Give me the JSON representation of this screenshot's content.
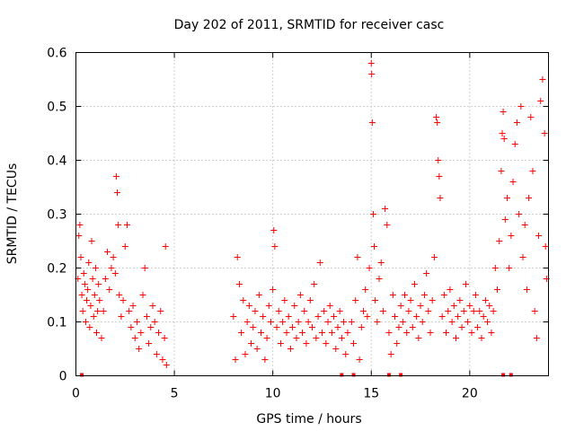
{
  "chart_data": {
    "type": "scatter",
    "title": "Day 202 of 2011, SRMTID for receiver casc",
    "xlabel": "GPS time / hours",
    "ylabel": "SRMTID / TECUs",
    "xlim": [
      0,
      24
    ],
    "ylim": [
      0,
      0.6
    ],
    "x_ticks": [
      0,
      5,
      10,
      15,
      20
    ],
    "y_ticks": [
      0,
      0.1,
      0.2,
      0.3,
      0.4,
      0.5,
      0.6
    ],
    "x_tick_labels": [
      "0",
      "5",
      "10",
      "15",
      "20"
    ],
    "y_tick_labels": [
      "0",
      "0.1",
      "0.2",
      "0.3",
      "0.4",
      "0.5",
      "0.6"
    ],
    "grid": true,
    "marker": "plus",
    "series": [
      {
        "name": "SRMTID",
        "color": "#ff0000",
        "points": [
          [
            0.1,
            0.18
          ],
          [
            0.15,
            0.26
          ],
          [
            0.2,
            0.28
          ],
          [
            0.25,
            0.22
          ],
          [
            0.3,
            0.15
          ],
          [
            0.35,
            0.12
          ],
          [
            0.4,
            0.19
          ],
          [
            0.45,
            0.17
          ],
          [
            0.5,
            0.1
          ],
          [
            0.55,
            0.14
          ],
          [
            0.6,
            0.16
          ],
          [
            0.65,
            0.21
          ],
          [
            0.7,
            0.09
          ],
          [
            0.75,
            0.13
          ],
          [
            0.8,
            0.25
          ],
          [
            0.85,
            0.18
          ],
          [
            0.9,
            0.11
          ],
          [
            0.95,
            0.15
          ],
          [
            1.0,
            0.2
          ],
          [
            1.05,
            0.08
          ],
          [
            1.1,
            0.12
          ],
          [
            1.15,
            0.17
          ],
          [
            1.2,
            0.14
          ],
          [
            1.3,
            0.07
          ],
          [
            1.4,
            0.12
          ],
          [
            1.5,
            0.18
          ],
          [
            1.6,
            0.23
          ],
          [
            1.7,
            0.16
          ],
          [
            1.8,
            0.2
          ],
          [
            1.9,
            0.22
          ],
          [
            2.0,
            0.19
          ],
          [
            2.05,
            0.37
          ],
          [
            2.1,
            0.34
          ],
          [
            2.15,
            0.28
          ],
          [
            2.2,
            0.15
          ],
          [
            2.3,
            0.11
          ],
          [
            2.4,
            0.14
          ],
          [
            2.5,
            0.24
          ],
          [
            2.6,
            0.28
          ],
          [
            2.7,
            0.12
          ],
          [
            2.8,
            0.09
          ],
          [
            2.9,
            0.13
          ],
          [
            3.0,
            0.07
          ],
          [
            3.1,
            0.1
          ],
          [
            3.2,
            0.05
          ],
          [
            3.3,
            0.08
          ],
          [
            3.4,
            0.15
          ],
          [
            3.5,
            0.2
          ],
          [
            3.6,
            0.11
          ],
          [
            3.7,
            0.06
          ],
          [
            3.8,
            0.09
          ],
          [
            3.9,
            0.13
          ],
          [
            4.0,
            0.1
          ],
          [
            4.1,
            0.04
          ],
          [
            4.2,
            0.08
          ],
          [
            4.3,
            0.12
          ],
          [
            4.4,
            0.03
          ],
          [
            4.5,
            0.07
          ],
          [
            4.55,
            0.24
          ],
          [
            4.6,
            0.02
          ],
          [
            8.0,
            0.11
          ],
          [
            8.1,
            0.03
          ],
          [
            8.2,
            0.22
          ],
          [
            8.3,
            0.17
          ],
          [
            8.4,
            0.08
          ],
          [
            8.5,
            0.14
          ],
          [
            8.6,
            0.04
          ],
          [
            8.7,
            0.1
          ],
          [
            8.8,
            0.13
          ],
          [
            8.9,
            0.06
          ],
          [
            9.0,
            0.09
          ],
          [
            9.1,
            0.12
          ],
          [
            9.2,
            0.05
          ],
          [
            9.3,
            0.15
          ],
          [
            9.4,
            0.08
          ],
          [
            9.5,
            0.11
          ],
          [
            9.6,
            0.03
          ],
          [
            9.7,
            0.07
          ],
          [
            9.8,
            0.13
          ],
          [
            9.9,
            0.1
          ],
          [
            10.0,
            0.16
          ],
          [
            10.05,
            0.27
          ],
          [
            10.1,
            0.24
          ],
          [
            10.2,
            0.09
          ],
          [
            10.3,
            0.12
          ],
          [
            10.4,
            0.06
          ],
          [
            10.5,
            0.1
          ],
          [
            10.6,
            0.14
          ],
          [
            10.7,
            0.08
          ],
          [
            10.8,
            0.11
          ],
          [
            10.9,
            0.05
          ],
          [
            11.0,
            0.09
          ],
          [
            11.1,
            0.13
          ],
          [
            11.2,
            0.07
          ],
          [
            11.3,
            0.1
          ],
          [
            11.4,
            0.15
          ],
          [
            11.5,
            0.08
          ],
          [
            11.6,
            0.12
          ],
          [
            11.7,
            0.06
          ],
          [
            11.8,
            0.1
          ],
          [
            11.9,
            0.14
          ],
          [
            12.0,
            0.09
          ],
          [
            12.1,
            0.17
          ],
          [
            12.2,
            0.07
          ],
          [
            12.3,
            0.11
          ],
          [
            12.4,
            0.21
          ],
          [
            12.5,
            0.08
          ],
          [
            12.6,
            0.12
          ],
          [
            12.7,
            0.06
          ],
          [
            12.8,
            0.1
          ],
          [
            12.9,
            0.13
          ],
          [
            13.0,
            0.08
          ],
          [
            13.1,
            0.11
          ],
          [
            13.2,
            0.05
          ],
          [
            13.3,
            0.09
          ],
          [
            13.4,
            0.12
          ],
          [
            13.5,
            0.07
          ],
          [
            13.6,
            0.1
          ],
          [
            13.7,
            0.04
          ],
          [
            13.8,
            0.08
          ],
          [
            14.0,
            0.1
          ],
          [
            14.1,
            0.06
          ],
          [
            14.2,
            0.14
          ],
          [
            14.3,
            0.22
          ],
          [
            14.4,
            0.03
          ],
          [
            14.5,
            0.09
          ],
          [
            14.6,
            0.12
          ],
          [
            14.7,
            0.16
          ],
          [
            14.8,
            0.11
          ],
          [
            14.9,
            0.2
          ],
          [
            15.0,
            0.58
          ],
          [
            15.02,
            0.56
          ],
          [
            15.05,
            0.47
          ],
          [
            15.1,
            0.3
          ],
          [
            15.15,
            0.24
          ],
          [
            15.2,
            0.14
          ],
          [
            15.3,
            0.1
          ],
          [
            15.4,
            0.18
          ],
          [
            15.5,
            0.21
          ],
          [
            15.6,
            0.12
          ],
          [
            15.7,
            0.31
          ],
          [
            15.8,
            0.28
          ],
          [
            15.9,
            0.08
          ],
          [
            16.0,
            0.04
          ],
          [
            16.1,
            0.15
          ],
          [
            16.2,
            0.11
          ],
          [
            16.3,
            0.06
          ],
          [
            16.4,
            0.09
          ],
          [
            16.5,
            0.13
          ],
          [
            16.6,
            0.1
          ],
          [
            16.7,
            0.15
          ],
          [
            16.8,
            0.08
          ],
          [
            16.9,
            0.12
          ],
          [
            17.0,
            0.14
          ],
          [
            17.1,
            0.09
          ],
          [
            17.2,
            0.17
          ],
          [
            17.3,
            0.11
          ],
          [
            17.4,
            0.07
          ],
          [
            17.5,
            0.13
          ],
          [
            17.6,
            0.1
          ],
          [
            17.7,
            0.15
          ],
          [
            17.8,
            0.19
          ],
          [
            17.9,
            0.12
          ],
          [
            18.0,
            0.08
          ],
          [
            18.1,
            0.14
          ],
          [
            18.2,
            0.22
          ],
          [
            18.3,
            0.48
          ],
          [
            18.35,
            0.47
          ],
          [
            18.4,
            0.4
          ],
          [
            18.45,
            0.37
          ],
          [
            18.5,
            0.33
          ],
          [
            18.6,
            0.11
          ],
          [
            18.7,
            0.15
          ],
          [
            18.8,
            0.08
          ],
          [
            18.9,
            0.12
          ],
          [
            19.0,
            0.16
          ],
          [
            19.1,
            0.1
          ],
          [
            19.2,
            0.13
          ],
          [
            19.3,
            0.07
          ],
          [
            19.4,
            0.11
          ],
          [
            19.5,
            0.14
          ],
          [
            19.6,
            0.09
          ],
          [
            19.7,
            0.12
          ],
          [
            19.8,
            0.17
          ],
          [
            19.9,
            0.1
          ],
          [
            20.0,
            0.13
          ],
          [
            20.1,
            0.08
          ],
          [
            20.2,
            0.12
          ],
          [
            20.3,
            0.15
          ],
          [
            20.4,
            0.09
          ],
          [
            20.5,
            0.12
          ],
          [
            20.6,
            0.07
          ],
          [
            20.7,
            0.11
          ],
          [
            20.8,
            0.14
          ],
          [
            20.9,
            0.1
          ],
          [
            21.0,
            0.13
          ],
          [
            21.1,
            0.08
          ],
          [
            21.2,
            0.12
          ],
          [
            21.3,
            0.2
          ],
          [
            21.4,
            0.16
          ],
          [
            21.5,
            0.25
          ],
          [
            21.6,
            0.38
          ],
          [
            21.65,
            0.45
          ],
          [
            21.7,
            0.49
          ],
          [
            21.75,
            0.44
          ],
          [
            21.8,
            0.29
          ],
          [
            21.9,
            0.33
          ],
          [
            22.0,
            0.2
          ],
          [
            22.1,
            0.26
          ],
          [
            22.2,
            0.36
          ],
          [
            22.3,
            0.43
          ],
          [
            22.4,
            0.47
          ],
          [
            22.5,
            0.3
          ],
          [
            22.6,
            0.5
          ],
          [
            22.7,
            0.22
          ],
          [
            22.8,
            0.28
          ],
          [
            22.9,
            0.16
          ],
          [
            23.0,
            0.33
          ],
          [
            23.1,
            0.48
          ],
          [
            23.2,
            0.38
          ],
          [
            23.3,
            0.12
          ],
          [
            23.4,
            0.07
          ],
          [
            23.5,
            0.26
          ],
          [
            23.6,
            0.51
          ],
          [
            23.7,
            0.55
          ],
          [
            23.8,
            0.45
          ],
          [
            23.85,
            0.24
          ],
          [
            23.9,
            0.18
          ]
        ],
        "zero_points": [
          0.3,
          13.5,
          14.1,
          15.9,
          16.5,
          21.7,
          22.1
        ]
      }
    ]
  }
}
